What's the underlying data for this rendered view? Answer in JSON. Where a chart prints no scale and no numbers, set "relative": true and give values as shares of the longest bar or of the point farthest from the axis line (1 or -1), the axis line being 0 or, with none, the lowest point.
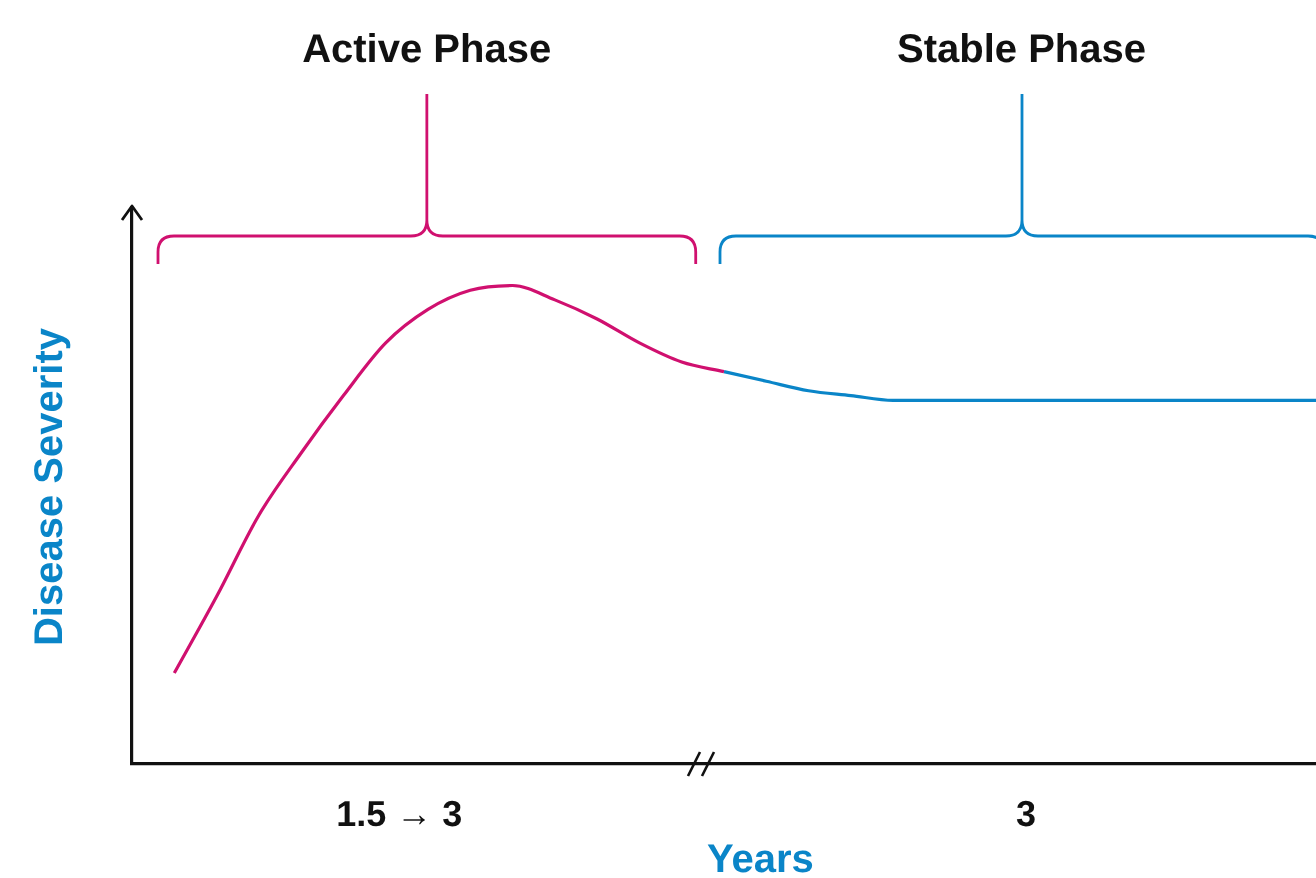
{
  "chart_data": {
    "type": "line",
    "relative": true,
    "xlabel": "Years",
    "ylabel": "Disease Severity",
    "categories": [
      null,
      null,
      null,
      null,
      null,
      null,
      null,
      null,
      null,
      null,
      null,
      null,
      null,
      null,
      null,
      null,
      null,
      null,
      null,
      null,
      null,
      null,
      null,
      null,
      null,
      null,
      null,
      null,
      null
    ],
    "series": [
      {
        "color": "#d0106f",
        "values": [
          null,
          0.19,
          0.35,
          0.52,
          0.65,
          0.77,
          0.88,
          0.95,
          0.99,
          1.0,
          0.97,
          0.93,
          0.88,
          0.84,
          0.82,
          null,
          null,
          null,
          null,
          null,
          null,
          null,
          null,
          null,
          null,
          null,
          null,
          null,
          null
        ]
      },
      {
        "color": "#0a85c8",
        "values": [
          null,
          null,
          null,
          null,
          null,
          null,
          null,
          null,
          null,
          null,
          null,
          null,
          null,
          null,
          0.82,
          0.8,
          0.78,
          0.77,
          0.76,
          0.76,
          0.76,
          0.76,
          0.76,
          0.76,
          0.76,
          0.76,
          0.76,
          0.76,
          0.76
        ]
      }
    ],
    "annotations": [
      "Active Phase",
      "Stable Phase",
      "1.5 → 3",
      "3"
    ],
    "grid": false,
    "legend": false,
    "marker": "none",
    "line_style": "solid"
  }
}
